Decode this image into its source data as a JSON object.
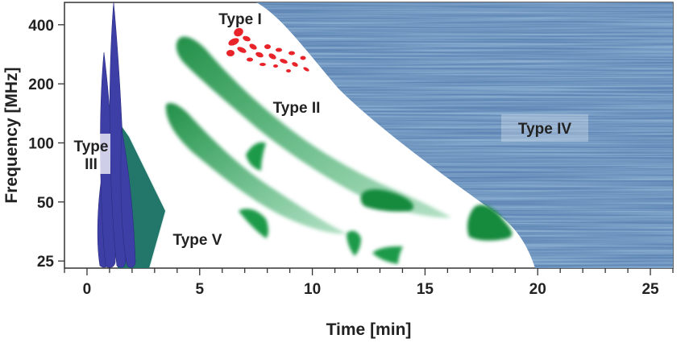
{
  "figure": {
    "x_axis": {
      "title": "Time [min]",
      "ticks": [
        0,
        5,
        10,
        15,
        20,
        25
      ],
      "range": [
        -1,
        26
      ]
    },
    "y_axis": {
      "title": "Frequency [MHz]",
      "ticks": [
        25,
        50,
        100,
        200,
        400
      ],
      "scale": "log",
      "range": [
        23,
        520
      ]
    },
    "bursts": [
      {
        "id": "type-i",
        "label": "Type I",
        "color": "#e8232a"
      },
      {
        "id": "type-ii",
        "label": "Type II",
        "color": "#1f9a48"
      },
      {
        "id": "type-iii",
        "label": "Type III",
        "color": "#3d3fa6"
      },
      {
        "id": "type-iv",
        "label": "Type IV",
        "color": "#3f6e9e"
      },
      {
        "id": "type-v",
        "label": "Type V",
        "color": "#1d6b60"
      }
    ]
  }
}
